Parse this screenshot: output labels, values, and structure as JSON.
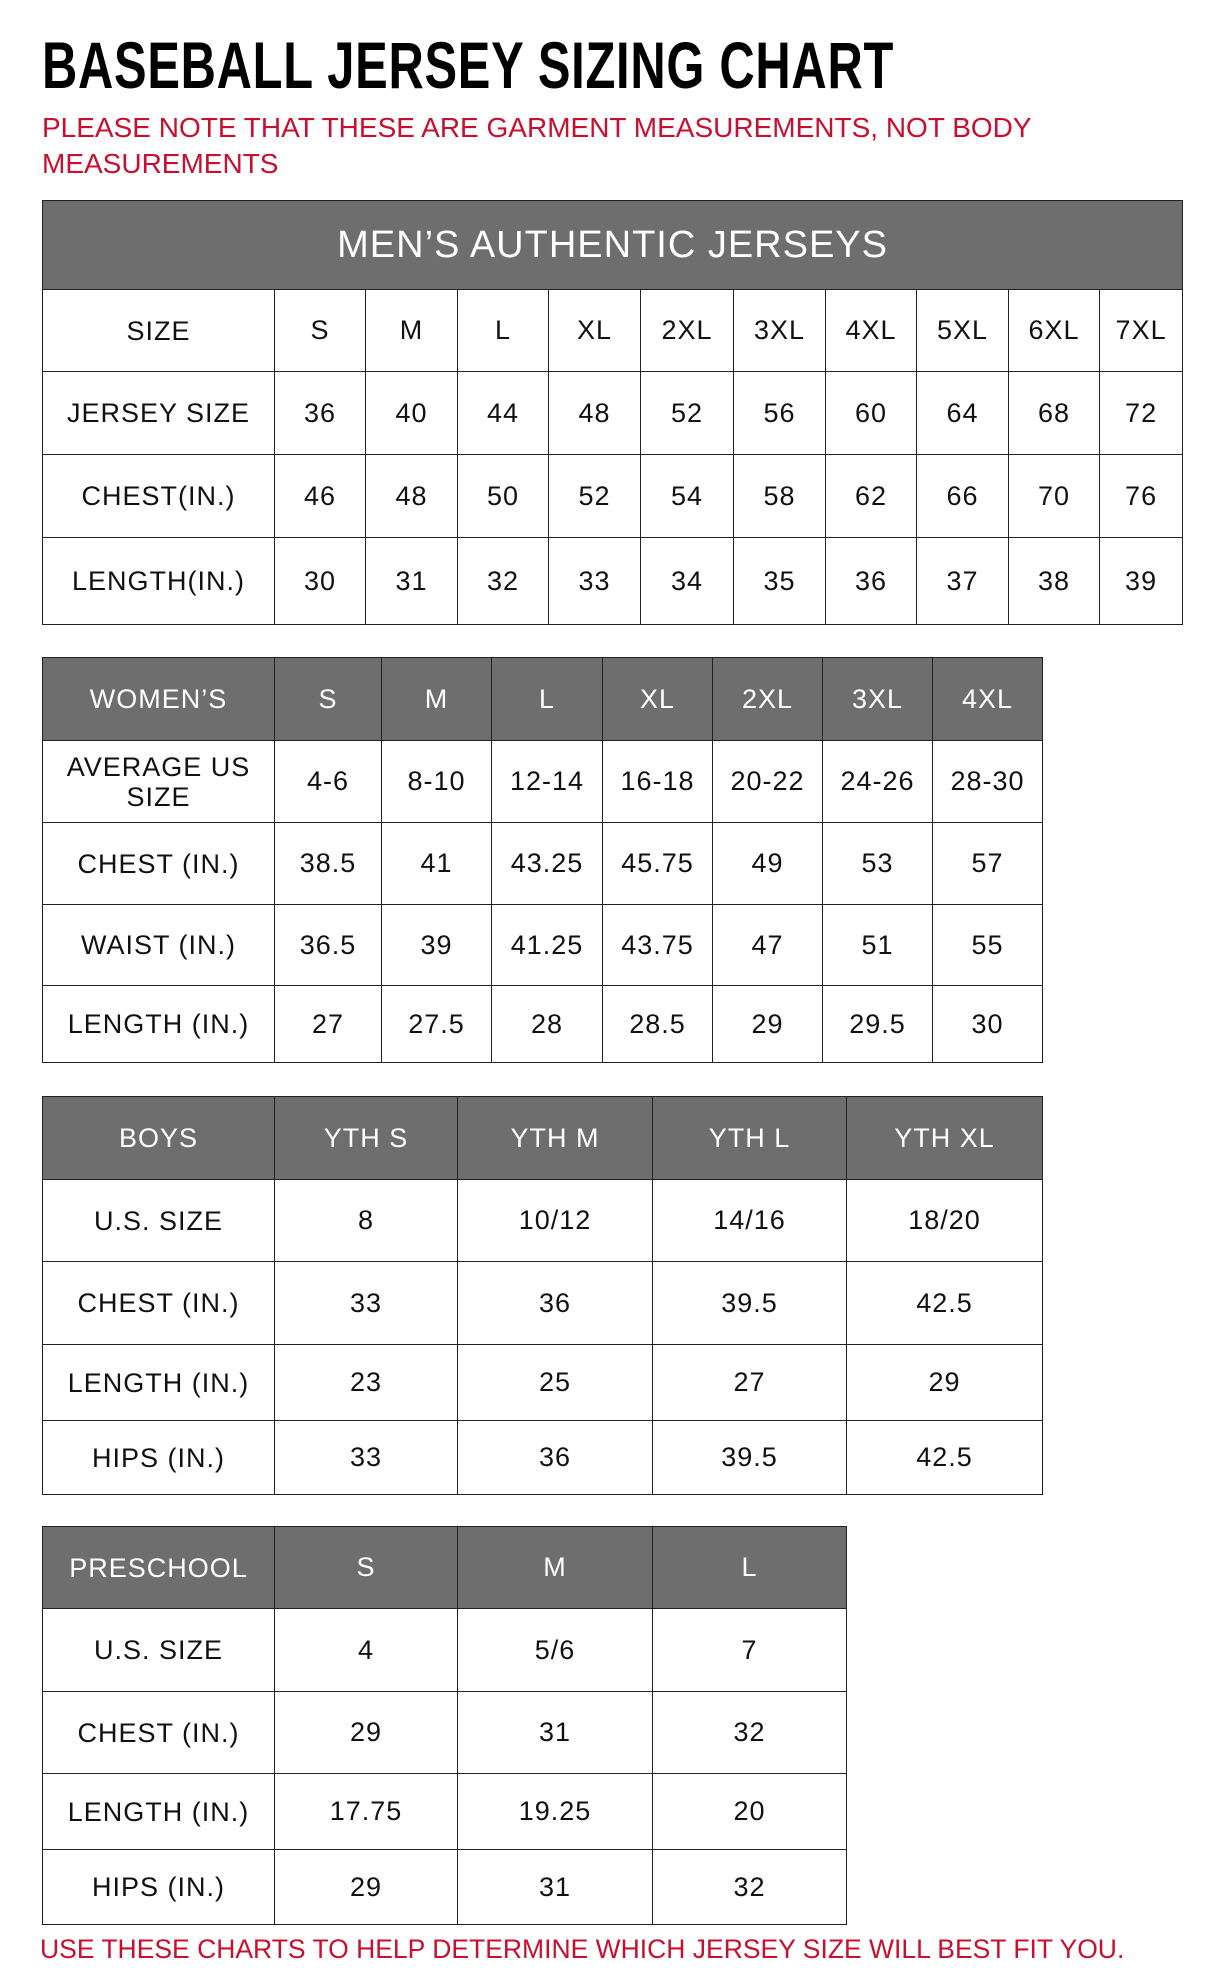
{
  "title": "BASEBALL JERSEY SIZING CHART",
  "note": "PLEASE NOTE THAT THESE ARE GARMENT MEASUREMENTS, NOT BODY MEASUREMENTS",
  "footer": "USE THESE CHARTS TO HELP DETERMINE WHICH JERSEY SIZE WILL BEST FIT YOU.",
  "colors": {
    "header_bg": "#6e6e6e",
    "note_red": "#c8102e"
  },
  "tables": [
    {
      "banner": "MEN’S AUTHENTIC JERSEYS",
      "header_gray": false,
      "rows": [
        [
          "SIZE",
          "S",
          "M",
          "L",
          "XL",
          "2XL",
          "3XL",
          "4XL",
          "5XL",
          "6XL",
          "7XL"
        ],
        [
          "JERSEY SIZE",
          "36",
          "40",
          "44",
          "48",
          "52",
          "56",
          "60",
          "64",
          "68",
          "72"
        ],
        [
          "CHEST(IN.)",
          "46",
          "48",
          "50",
          "52",
          "54",
          "58",
          "62",
          "66",
          "70",
          "76"
        ],
        [
          "LENGTH(IN.)",
          "30",
          "31",
          "32",
          "33",
          "34",
          "35",
          "36",
          "37",
          "38",
          "39"
        ]
      ]
    },
    {
      "header_gray": true,
      "rows": [
        [
          "WOMEN’S",
          "S",
          "M",
          "L",
          "XL",
          "2XL",
          "3XL",
          "4XL"
        ],
        [
          "AVERAGE US SIZE",
          "4-6",
          "8-10",
          "12-14",
          "16-18",
          "20-22",
          "24-26",
          "28-30"
        ],
        [
          "CHEST (IN.)",
          "38.5",
          "41",
          "43.25",
          "45.75",
          "49",
          "53",
          "57"
        ],
        [
          "WAIST (IN.)",
          "36.5",
          "39",
          "41.25",
          "43.75",
          "47",
          "51",
          "55"
        ],
        [
          "LENGTH (IN.)",
          "27",
          "27.5",
          "28",
          "28.5",
          "29",
          "29.5",
          "30"
        ]
      ]
    },
    {
      "header_gray": true,
      "rows": [
        [
          "BOYS",
          "YTH S",
          "YTH M",
          "YTH L",
          "YTH XL"
        ],
        [
          "U.S. SIZE",
          "8",
          "10/12",
          "14/16",
          "18/20"
        ],
        [
          "CHEST (IN.)",
          "33",
          "36",
          "39.5",
          "42.5"
        ],
        [
          "LENGTH (IN.)",
          "23",
          "25",
          "27",
          "29"
        ],
        [
          "HIPS (IN.)",
          "33",
          "36",
          "39.5",
          "42.5"
        ]
      ]
    },
    {
      "header_gray": true,
      "rows": [
        [
          "PRESCHOOL",
          "S",
          "M",
          "L"
        ],
        [
          "U.S. SIZE",
          "4",
          "5/6",
          "7"
        ],
        [
          "CHEST (IN.)",
          "29",
          "31",
          "32"
        ],
        [
          "LENGTH (IN.)",
          "17.75",
          "19.25",
          "20"
        ],
        [
          "HIPS (IN.)",
          "29",
          "31",
          "32"
        ]
      ]
    }
  ]
}
